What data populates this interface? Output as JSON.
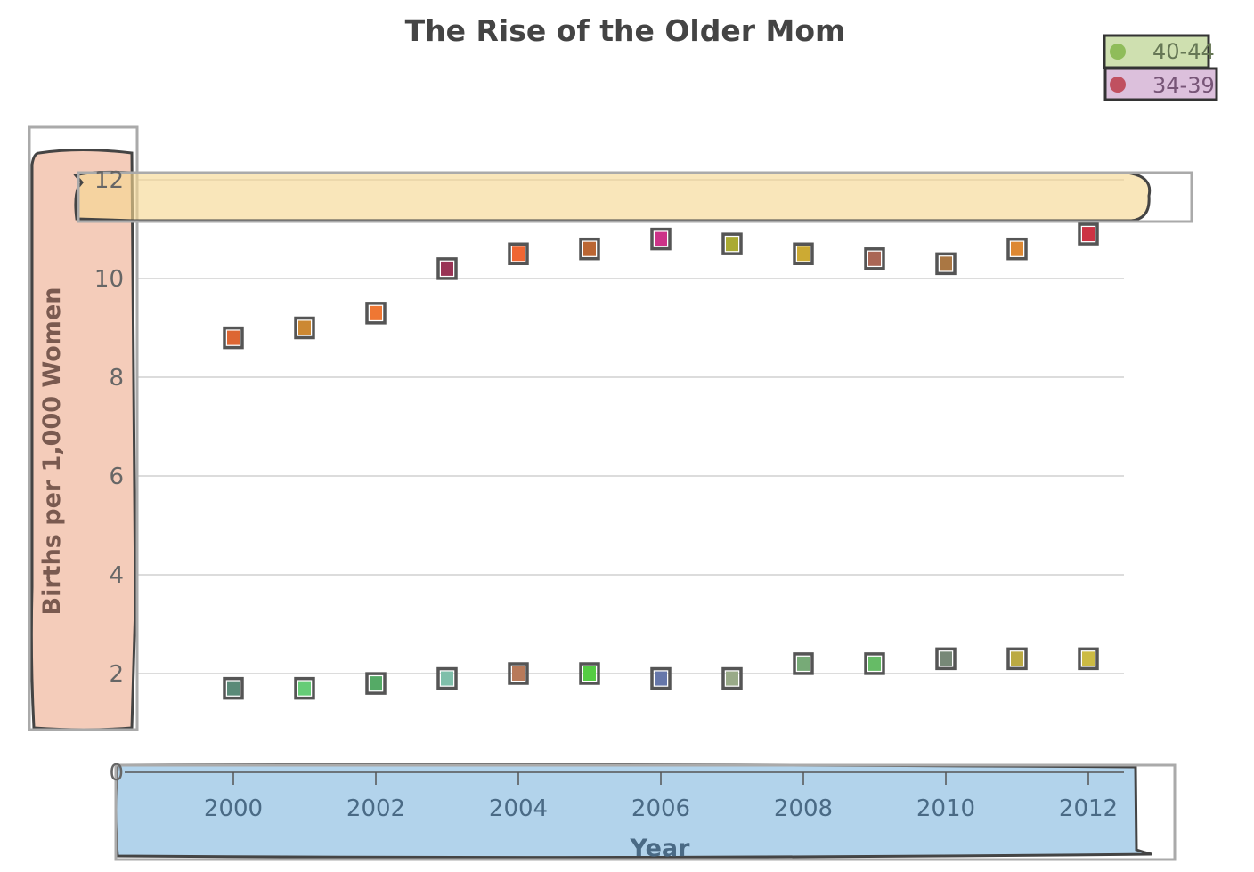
{
  "chart_data": {
    "type": "scatter",
    "title": "The Rise of the Older Mom",
    "xlabel": "Year",
    "ylabel": "Births per 1,000 Women",
    "xlim": [
      1998.6,
      2012.5
    ],
    "ylim": [
      0,
      12.5
    ],
    "x_ticks": [
      "2000",
      "2002",
      "2004",
      "2006",
      "2008",
      "2010",
      "2012"
    ],
    "y_ticks": [
      "0",
      "2",
      "4",
      "6",
      "8",
      "10",
      "12"
    ],
    "grid": true,
    "legend_position": "top-right",
    "x": [
      2000,
      2001,
      2002,
      2003,
      2004,
      2005,
      2006,
      2007,
      2008,
      2009,
      2010,
      2011,
      2012
    ],
    "series": [
      {
        "name": "40-44",
        "legend_color": "#8fbc5a",
        "values": [
          1.7,
          1.7,
          1.8,
          1.9,
          2.0,
          2.0,
          1.9,
          1.9,
          2.2,
          2.2,
          2.3,
          2.3,
          2.3
        ],
        "point_colors": [
          "#5a8a78",
          "#66cc77",
          "#55aa66",
          "#7fbfaa",
          "#b87a5a",
          "#55cc44",
          "#6677aa",
          "#99aa88",
          "#77aa77",
          "#66bb66",
          "#778877",
          "#bbaa44",
          "#ccbb44"
        ]
      },
      {
        "name": "34-39",
        "legend_color": "#c05060",
        "values": [
          8.8,
          9.0,
          9.3,
          10.2,
          10.5,
          10.6,
          10.8,
          10.7,
          10.5,
          10.4,
          10.3,
          10.6,
          10.9
        ],
        "point_colors": [
          "#dd6633",
          "#cc8833",
          "#ee7733",
          "#993355",
          "#ee6633",
          "#bb6633",
          "#cc3388",
          "#aaaa33",
          "#ccaa33",
          "#aa6655",
          "#aa7744",
          "#dd8833",
          "#cc3344"
        ]
      }
    ]
  }
}
